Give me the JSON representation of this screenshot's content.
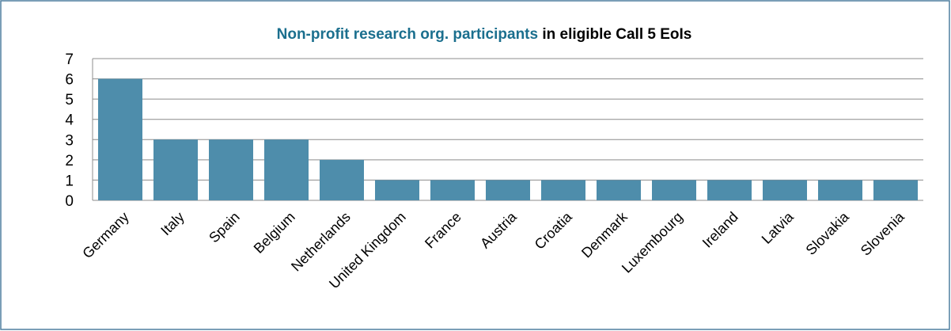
{
  "chart_data": {
    "type": "bar",
    "title": [
      "Non-profit research org. participants",
      "in eligible Call 5 EoIs"
    ],
    "title_colors": [
      "#1b6f8e",
      "#000000"
    ],
    "categories": [
      "Germany",
      "Italy",
      "Spain",
      "Belgium",
      "Netherlands",
      "United Kingdom",
      "France",
      "Austria",
      "Croatia",
      "Denmark",
      "Luxembourg",
      "Ireland",
      "Latvia",
      "Slovakia",
      "Slovenia"
    ],
    "values": [
      6,
      3,
      3,
      3,
      2,
      1,
      1,
      1,
      1,
      1,
      1,
      1,
      1,
      1,
      1
    ],
    "color": "#4e8dab",
    "ylim": [
      0,
      7
    ],
    "yticks": [
      0,
      1,
      2,
      3,
      4,
      5,
      6,
      7
    ],
    "grid": true
  }
}
